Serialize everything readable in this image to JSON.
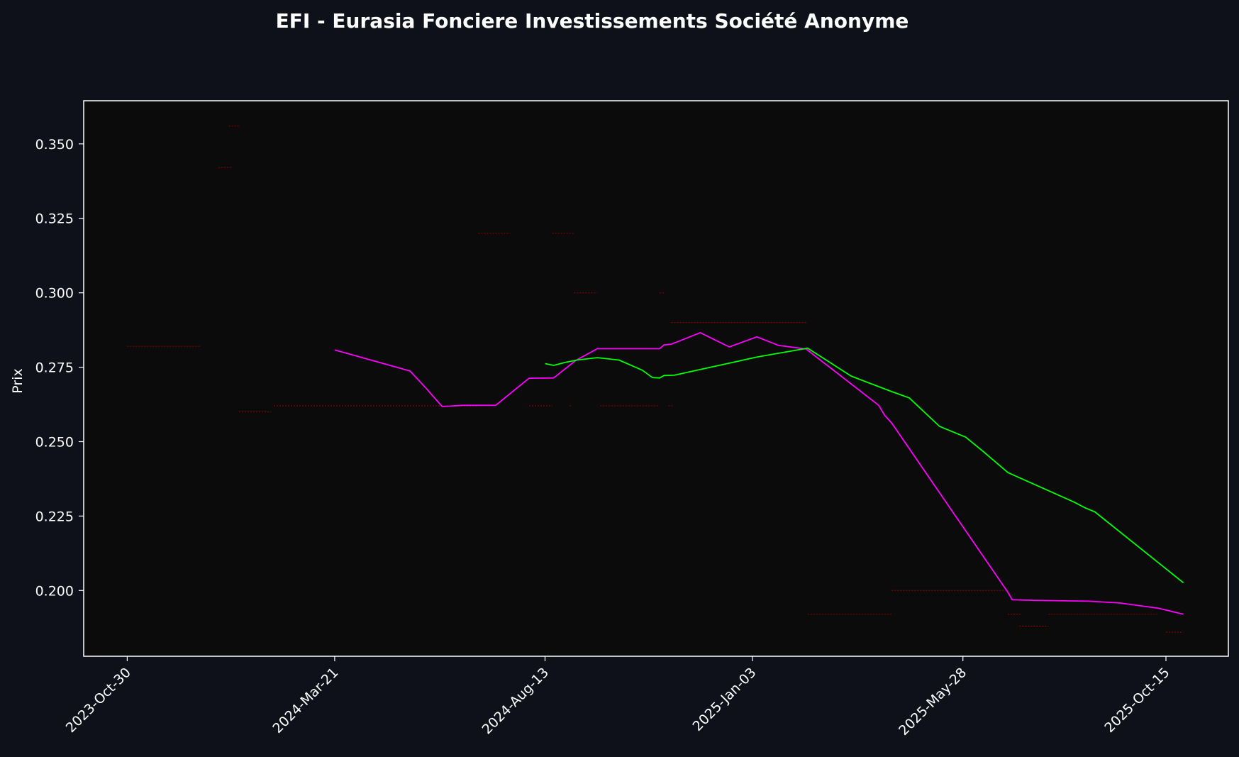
{
  "chart_data": {
    "type": "line",
    "title": "EFI - Eurasia Fonciere Investissements Société Anonyme",
    "ylabel": "Prix",
    "xlabel": "",
    "xlim": [
      "2023-09-30",
      "2025-11-27"
    ],
    "ylim": [
      0.1779,
      0.3645
    ],
    "grid": false,
    "legend": "none",
    "colors": {
      "page_background": "#0e111a",
      "plot_background": "#0b0b0b",
      "axis": "#ffffff",
      "text": "#ffffff",
      "price_marks": "#8b0000",
      "ma_short": "#ff00ff",
      "ma_long": "#00ff00"
    },
    "x_ticks": [
      "2023-10-30",
      "2024-03-21",
      "2024-08-13",
      "2025-01-03",
      "2025-05-28",
      "2025-10-15"
    ],
    "x_tick_labels": [
      "2023-Oct-30",
      "2024-Mar-21",
      "2024-Aug-13",
      "2025-Jan-03",
      "2025-May-28",
      "2025-Oct-15"
    ],
    "y_ticks": [
      0.2,
      0.225,
      0.25,
      0.275,
      0.3,
      0.325,
      0.35
    ],
    "y_tick_labels": [
      "0.200",
      "0.225",
      "0.250",
      "0.275",
      "0.300",
      "0.325",
      "0.350"
    ],
    "price_segments": [
      {
        "start": "2023-10-30",
        "end": "2023-12-20",
        "y": 0.282
      },
      {
        "start": "2024-01-01",
        "end": "2024-01-10",
        "y": 0.342
      },
      {
        "start": "2024-01-08",
        "end": "2024-01-15",
        "y": 0.356
      },
      {
        "start": "2024-01-15",
        "end": "2024-02-06",
        "y": 0.26
      },
      {
        "start": "2024-02-08",
        "end": "2024-06-28",
        "y": 0.262
      },
      {
        "start": "2024-06-28",
        "end": "2024-07-20",
        "y": 0.32
      },
      {
        "start": "2024-08-02",
        "end": "2024-08-18",
        "y": 0.262
      },
      {
        "start": "2024-08-18",
        "end": "2024-09-02",
        "y": 0.32
      },
      {
        "start": "2024-08-30",
        "end": "2024-08-31",
        "y": 0.262
      },
      {
        "start": "2024-09-02",
        "end": "2024-09-18",
        "y": 0.3
      },
      {
        "start": "2024-09-20",
        "end": "2024-10-30",
        "y": 0.262
      },
      {
        "start": "2024-10-31",
        "end": "2024-11-03",
        "y": 0.3
      },
      {
        "start": "2024-11-06",
        "end": "2024-11-09",
        "y": 0.262
      },
      {
        "start": "2024-11-08",
        "end": "2025-02-10",
        "y": 0.29
      },
      {
        "start": "2025-02-10",
        "end": "2025-04-09",
        "y": 0.192
      },
      {
        "start": "2025-04-09",
        "end": "2025-06-28",
        "y": 0.2
      },
      {
        "start": "2025-06-28",
        "end": "2025-07-07",
        "y": 0.192
      },
      {
        "start": "2025-07-06",
        "end": "2025-07-26",
        "y": 0.188
      },
      {
        "start": "2025-07-26",
        "end": "2025-10-10",
        "y": 0.192
      },
      {
        "start": "2025-10-15",
        "end": "2025-10-27",
        "y": 0.186
      }
    ],
    "series": [
      {
        "color": "#ff00ff",
        "x": [
          "2024-03-21",
          "2024-05-12",
          "2024-05-23",
          "2024-06-03",
          "2024-06-08",
          "2024-06-17",
          "2024-07-10",
          "2024-08-02",
          "2024-08-19",
          "2024-09-03",
          "2024-09-18",
          "2024-10-31",
          "2024-11-03",
          "2024-11-08",
          "2024-11-28",
          "2024-12-18",
          "2025-01-06",
          "2025-01-21",
          "2025-02-09",
          "2025-03-31",
          "2025-04-04",
          "2025-04-09",
          "2025-06-28",
          "2025-07-01",
          "2025-07-15",
          "2025-08-23",
          "2025-09-13",
          "2025-10-10",
          "2025-10-27"
        ],
        "y": [
          0.2808,
          0.2737,
          0.2679,
          0.2618,
          0.2619,
          0.2622,
          0.2622,
          0.2713,
          0.2714,
          0.2772,
          0.2812,
          0.2812,
          0.2825,
          0.2827,
          0.2866,
          0.2818,
          0.2852,
          0.2823,
          0.2811,
          0.2622,
          0.2589,
          0.2562,
          0.1994,
          0.1969,
          0.1967,
          0.1964,
          0.1958,
          0.194,
          0.192
        ]
      },
      {
        "color": "#00ff00",
        "x": [
          "2024-08-13",
          "2024-08-19",
          "2024-08-27",
          "2024-09-04",
          "2024-09-18",
          "2024-10-03",
          "2024-10-19",
          "2024-10-26",
          "2024-10-31",
          "2024-11-03",
          "2024-11-10",
          "2025-01-06",
          "2025-02-10",
          "2025-03-12",
          "2025-04-09",
          "2025-04-21",
          "2025-05-12",
          "2025-05-30",
          "2025-06-12",
          "2025-06-28",
          "2025-08-13",
          "2025-08-20",
          "2025-08-27",
          "2025-10-27"
        ],
        "y": [
          0.2762,
          0.2756,
          0.2766,
          0.2774,
          0.2782,
          0.2774,
          0.274,
          0.2715,
          0.2714,
          0.2722,
          0.2723,
          0.2784,
          0.2814,
          0.272,
          0.2668,
          0.2647,
          0.2551,
          0.2515,
          0.2463,
          0.2396,
          0.2296,
          0.2278,
          0.2264,
          0.2026
        ]
      }
    ]
  }
}
